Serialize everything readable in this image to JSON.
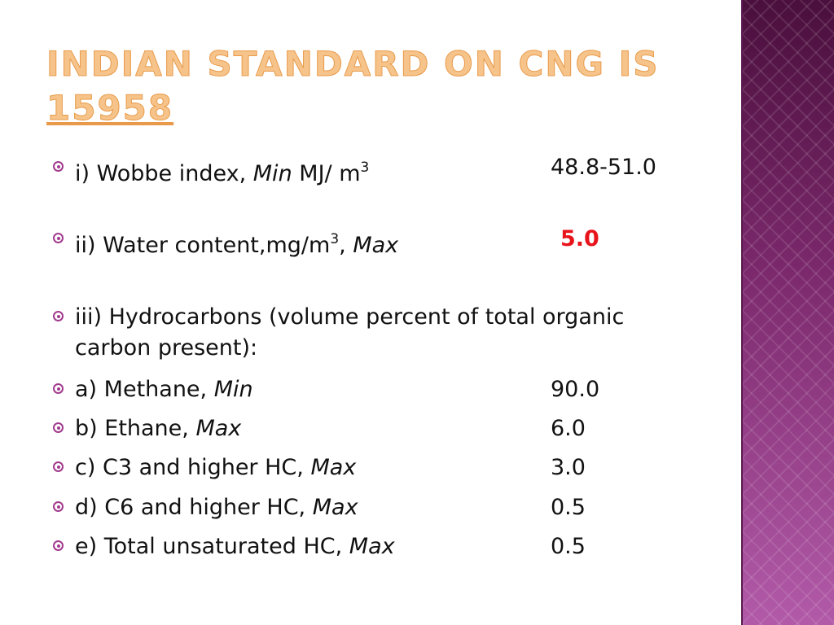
{
  "title": {
    "line1": "INDIAN STANDARD ON CNG IS",
    "line2": "15958"
  },
  "items": [
    {
      "parts": [
        {
          "text": "i) Wobbe index, "
        },
        {
          "text": "Min",
          "style": "italic"
        },
        {
          "text": " MJ/ m"
        },
        {
          "text": "3",
          "style": "sup"
        }
      ],
      "value": "48.8-51.0"
    },
    {
      "parts": [
        {
          "text": "ii) Water content,mg/m"
        },
        {
          "text": "3",
          "style": "sup"
        },
        {
          "text": ", "
        },
        {
          "text": "Max",
          "style": "italic"
        }
      ],
      "value": "5.0",
      "value_color": "#e8141b",
      "value_bold": true
    },
    {
      "parts": [
        {
          "text": "iii) Hydrocarbons (volume percent of total organic carbon present):"
        }
      ]
    },
    {
      "parts": [
        {
          "text": "a) Methane, "
        },
        {
          "text": "Min",
          "style": "italic"
        }
      ],
      "value": "90.0"
    },
    {
      "parts": [
        {
          "text": "b) Ethane, "
        },
        {
          "text": "Max",
          "style": "italic"
        }
      ],
      "value": "6.0"
    },
    {
      "parts": [
        {
          "text": "c) C3 and higher HC, "
        },
        {
          "text": "Max",
          "style": "italic"
        }
      ],
      "value": "3.0"
    },
    {
      "parts": [
        {
          "text": "d) C6 and higher HC, "
        },
        {
          "text": "Max",
          "style": "italic"
        }
      ],
      "value": "0.5"
    },
    {
      "parts": [
        {
          "text": "e) Total unsaturated HC, "
        },
        {
          "text": "Max",
          "style": "italic"
        }
      ],
      "value": "0.5"
    }
  ]
}
